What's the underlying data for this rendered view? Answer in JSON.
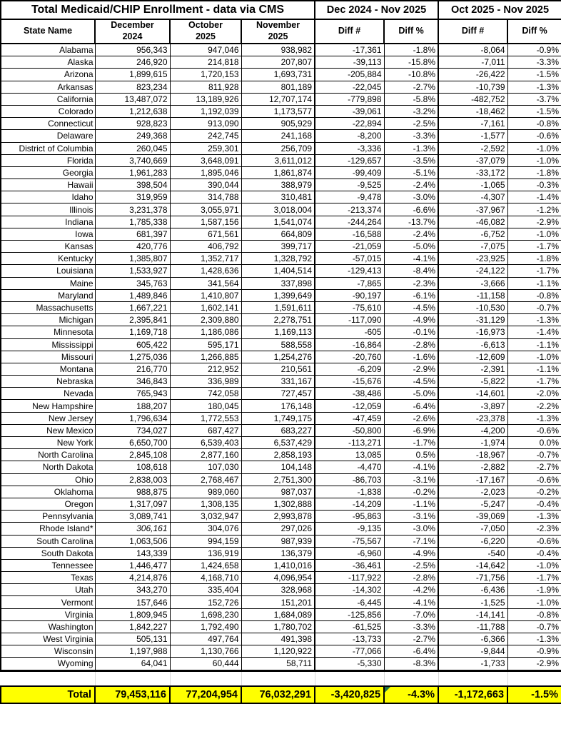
{
  "table": {
    "title": "Total Medicaid/CHIP Enrollment - data via CMS",
    "period_headers": [
      "Dec 2024 - Nov 2025",
      "Oct 2025 - Nov 2025"
    ],
    "columns": [
      "State Name",
      "December\n2024",
      "October\n2025",
      "November\n2025",
      "Diff #",
      "Diff %",
      "Diff #",
      "Diff %"
    ],
    "italic_december_value_state": "Rhode Island*",
    "rows": [
      [
        "Alabama",
        "956,343",
        "947,046",
        "938,982",
        "-17,361",
        "-1.8%",
        "-8,064",
        "-0.9%"
      ],
      [
        "Alaska",
        "246,920",
        "214,818",
        "207,807",
        "-39,113",
        "-15.8%",
        "-7,011",
        "-3.3%"
      ],
      [
        "Arizona",
        "1,899,615",
        "1,720,153",
        "1,693,731",
        "-205,884",
        "-10.8%",
        "-26,422",
        "-1.5%"
      ],
      [
        "Arkansas",
        "823,234",
        "811,928",
        "801,189",
        "-22,045",
        "-2.7%",
        "-10,739",
        "-1.3%"
      ],
      [
        "California",
        "13,487,072",
        "13,189,926",
        "12,707,174",
        "-779,898",
        "-5.8%",
        "-482,752",
        "-3.7%"
      ],
      [
        "Colorado",
        "1,212,638",
        "1,192,039",
        "1,173,577",
        "-39,061",
        "-3.2%",
        "-18,462",
        "-1.5%"
      ],
      [
        "Connecticut",
        "928,823",
        "913,090",
        "905,929",
        "-22,894",
        "-2.5%",
        "-7,161",
        "-0.8%"
      ],
      [
        "Delaware",
        "249,368",
        "242,745",
        "241,168",
        "-8,200",
        "-3.3%",
        "-1,577",
        "-0.6%"
      ],
      [
        "District of Columbia",
        "260,045",
        "259,301",
        "256,709",
        "-3,336",
        "-1.3%",
        "-2,592",
        "-1.0%"
      ],
      [
        "Florida",
        "3,740,669",
        "3,648,091",
        "3,611,012",
        "-129,657",
        "-3.5%",
        "-37,079",
        "-1.0%"
      ],
      [
        "Georgia",
        "1,961,283",
        "1,895,046",
        "1,861,874",
        "-99,409",
        "-5.1%",
        "-33,172",
        "-1.8%"
      ],
      [
        "Hawaii",
        "398,504",
        "390,044",
        "388,979",
        "-9,525",
        "-2.4%",
        "-1,065",
        "-0.3%"
      ],
      [
        "Idaho",
        "319,959",
        "314,788",
        "310,481",
        "-9,478",
        "-3.0%",
        "-4,307",
        "-1.4%"
      ],
      [
        "Illinois",
        "3,231,378",
        "3,055,971",
        "3,018,004",
        "-213,374",
        "-6.6%",
        "-37,967",
        "-1.2%"
      ],
      [
        "Indiana",
        "1,785,338",
        "1,587,156",
        "1,541,074",
        "-244,264",
        "-13.7%",
        "-46,082",
        "-2.9%"
      ],
      [
        "Iowa",
        "681,397",
        "671,561",
        "664,809",
        "-16,588",
        "-2.4%",
        "-6,752",
        "-1.0%"
      ],
      [
        "Kansas",
        "420,776",
        "406,792",
        "399,717",
        "-21,059",
        "-5.0%",
        "-7,075",
        "-1.7%"
      ],
      [
        "Kentucky",
        "1,385,807",
        "1,352,717",
        "1,328,792",
        "-57,015",
        "-4.1%",
        "-23,925",
        "-1.8%"
      ],
      [
        "Louisiana",
        "1,533,927",
        "1,428,636",
        "1,404,514",
        "-129,413",
        "-8.4%",
        "-24,122",
        "-1.7%"
      ],
      [
        "Maine",
        "345,763",
        "341,564",
        "337,898",
        "-7,865",
        "-2.3%",
        "-3,666",
        "-1.1%"
      ],
      [
        "Maryland",
        "1,489,846",
        "1,410,807",
        "1,399,649",
        "-90,197",
        "-6.1%",
        "-11,158",
        "-0.8%"
      ],
      [
        "Massachusetts",
        "1,667,221",
        "1,602,141",
        "1,591,611",
        "-75,610",
        "-4.5%",
        "-10,530",
        "-0.7%"
      ],
      [
        "Michigan",
        "2,395,841",
        "2,309,880",
        "2,278,751",
        "-117,090",
        "-4.9%",
        "-31,129",
        "-1.3%"
      ],
      [
        "Minnesota",
        "1,169,718",
        "1,186,086",
        "1,169,113",
        "-605",
        "-0.1%",
        "-16,973",
        "-1.4%"
      ],
      [
        "Mississippi",
        "605,422",
        "595,171",
        "588,558",
        "-16,864",
        "-2.8%",
        "-6,613",
        "-1.1%"
      ],
      [
        "Missouri",
        "1,275,036",
        "1,266,885",
        "1,254,276",
        "-20,760",
        "-1.6%",
        "-12,609",
        "-1.0%"
      ],
      [
        "Montana",
        "216,770",
        "212,952",
        "210,561",
        "-6,209",
        "-2.9%",
        "-2,391",
        "-1.1%"
      ],
      [
        "Nebraska",
        "346,843",
        "336,989",
        "331,167",
        "-15,676",
        "-4.5%",
        "-5,822",
        "-1.7%"
      ],
      [
        "Nevada",
        "765,943",
        "742,058",
        "727,457",
        "-38,486",
        "-5.0%",
        "-14,601",
        "-2.0%"
      ],
      [
        "New Hampshire",
        "188,207",
        "180,045",
        "176,148",
        "-12,059",
        "-6.4%",
        "-3,897",
        "-2.2%"
      ],
      [
        "New Jersey",
        "1,796,634",
        "1,772,553",
        "1,749,175",
        "-47,459",
        "-2.6%",
        "-23,378",
        "-1.3%"
      ],
      [
        "New Mexico",
        "734,027",
        "687,427",
        "683,227",
        "-50,800",
        "-6.9%",
        "-4,200",
        "-0.6%"
      ],
      [
        "New York",
        "6,650,700",
        "6,539,403",
        "6,537,429",
        "-113,271",
        "-1.7%",
        "-1,974",
        "0.0%"
      ],
      [
        "North Carolina",
        "2,845,108",
        "2,877,160",
        "2,858,193",
        "13,085",
        "0.5%",
        "-18,967",
        "-0.7%"
      ],
      [
        "North Dakota",
        "108,618",
        "107,030",
        "104,148",
        "-4,470",
        "-4.1%",
        "-2,882",
        "-2.7%"
      ],
      [
        "Ohio",
        "2,838,003",
        "2,768,467",
        "2,751,300",
        "-86,703",
        "-3.1%",
        "-17,167",
        "-0.6%"
      ],
      [
        "Oklahoma",
        "988,875",
        "989,060",
        "987,037",
        "-1,838",
        "-0.2%",
        "-2,023",
        "-0.2%"
      ],
      [
        "Oregon",
        "1,317,097",
        "1,308,135",
        "1,302,888",
        "-14,209",
        "-1.1%",
        "-5,247",
        "-0.4%"
      ],
      [
        "Pennsylvania",
        "3,089,741",
        "3,032,947",
        "2,993,878",
        "-95,863",
        "-3.1%",
        "-39,069",
        "-1.3%"
      ],
      [
        "Rhode Island*",
        "306,161",
        "304,076",
        "297,026",
        "-9,135",
        "-3.0%",
        "-7,050",
        "-2.3%"
      ],
      [
        "South Carolina",
        "1,063,506",
        "994,159",
        "987,939",
        "-75,567",
        "-7.1%",
        "-6,220",
        "-0.6%"
      ],
      [
        "South Dakota",
        "143,339",
        "136,919",
        "136,379",
        "-6,960",
        "-4.9%",
        "-540",
        "-0.4%"
      ],
      [
        "Tennessee",
        "1,446,477",
        "1,424,658",
        "1,410,016",
        "-36,461",
        "-2.5%",
        "-14,642",
        "-1.0%"
      ],
      [
        "Texas",
        "4,214,876",
        "4,168,710",
        "4,096,954",
        "-117,922",
        "-2.8%",
        "-71,756",
        "-1.7%"
      ],
      [
        "Utah",
        "343,270",
        "335,404",
        "328,968",
        "-14,302",
        "-4.2%",
        "-6,436",
        "-1.9%"
      ],
      [
        "Vermont",
        "157,646",
        "152,726",
        "151,201",
        "-6,445",
        "-4.1%",
        "-1,525",
        "-1.0%"
      ],
      [
        "Virginia",
        "1,809,945",
        "1,698,230",
        "1,684,089",
        "-125,856",
        "-7.0%",
        "-14,141",
        "-0.8%"
      ],
      [
        "Washington",
        "1,842,227",
        "1,792,490",
        "1,780,702",
        "-61,525",
        "-3.3%",
        "-11,788",
        "-0.7%"
      ],
      [
        "West Virginia",
        "505,131",
        "497,764",
        "491,398",
        "-13,733",
        "-2.7%",
        "-6,366",
        "-1.3%"
      ],
      [
        "Wisconsin",
        "1,197,988",
        "1,130,766",
        "1,120,922",
        "-77,066",
        "-6.4%",
        "-9,844",
        "-0.9%"
      ],
      [
        "Wyoming",
        "64,041",
        "60,444",
        "58,711",
        "-5,330",
        "-8.3%",
        "-1,733",
        "-2.9%"
      ]
    ],
    "total": {
      "label": "Total",
      "values": [
        "79,453,116",
        "77,204,954",
        "76,032,291",
        "-3,420,825",
        "-4.3%",
        "-1,172,663",
        "-1.5%"
      ]
    },
    "colors": {
      "total_row_highlight": "#ffff00",
      "note_triangle": "#1e7145",
      "border": "#000000",
      "spacer_gridline": "#d9d9d9"
    }
  }
}
